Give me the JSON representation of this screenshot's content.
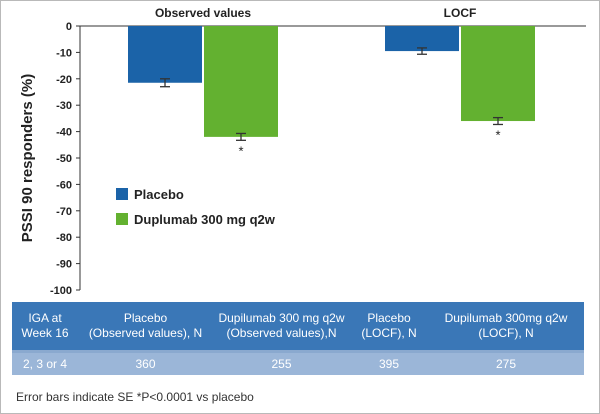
{
  "chart_data": {
    "type": "bar",
    "ylabel": "PSSI 90 responders (%)",
    "ylim": [
      -100,
      0
    ],
    "yticks": [
      0,
      -10,
      -20,
      -30,
      -40,
      -50,
      -60,
      -70,
      -80,
      -90,
      -100
    ],
    "groups": [
      "Observed values",
      "LOCF"
    ],
    "series": [
      {
        "name": "Placebo",
        "color": "#1b63a8",
        "values": [
          -21.5,
          -9.5
        ],
        "errors": [
          1.5,
          1.2
        ],
        "significant": [
          false,
          false
        ]
      },
      {
        "name": "Duplumab 300 mg q2w",
        "color": "#63b130",
        "values": [
          -42,
          -36
        ],
        "errors": [
          1.3,
          1.3
        ],
        "significant": [
          true,
          true
        ]
      }
    ],
    "significance_marker": "*",
    "legend_position": "middle-left"
  },
  "table": {
    "headers": [
      "IGA at\nWeek 16",
      "Placebo\n(Observed values), N",
      "Dupilumab 300 mg q2w\n(Observed values),N",
      "Placebo\n(LOCF), N",
      "Dupilumab 300mg q2w\n(LOCF), N"
    ],
    "rows": [
      [
        "2, 3 or 4",
        "360",
        "255",
        "395",
        "275"
      ]
    ]
  },
  "footnote": "Error bars indicate SE *P<0.0001 vs placebo"
}
